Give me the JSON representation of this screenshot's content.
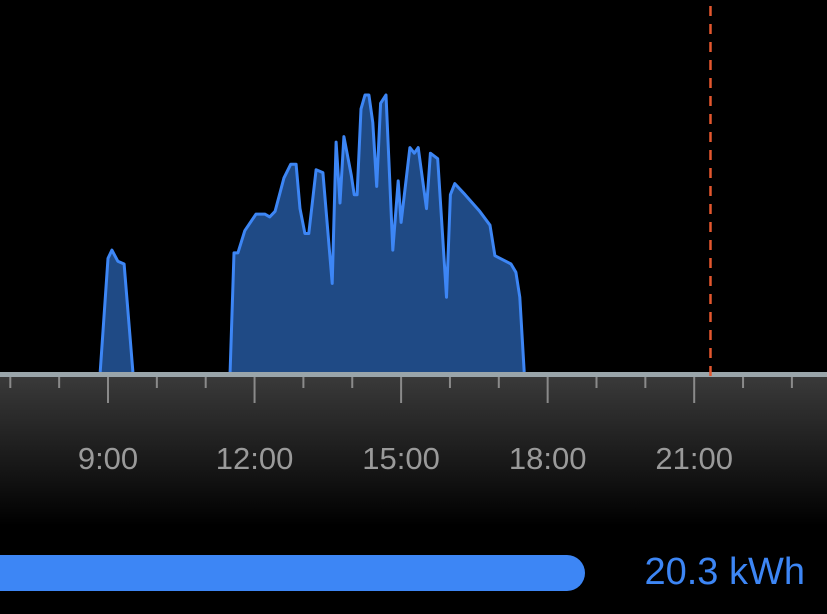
{
  "chart_data": {
    "type": "area",
    "xlabel": "",
    "ylabel": "",
    "xlim": [
      "6:47",
      "23:43"
    ],
    "ylim": [
      0,
      100
    ],
    "x_ticks": [
      "9:00",
      "12:00",
      "15:00",
      "18:00",
      "21:00"
    ],
    "minor_tick_interval_hours": 1,
    "grid": false,
    "current_time_marker": "21:20",
    "colors": {
      "fill": "#1f4a85",
      "line": "#3d86f5",
      "marker": "#e4572e",
      "axis": "#9aa5aa"
    },
    "points": [
      [
        8.84,
        0
      ],
      [
        9.0,
        41
      ],
      [
        9.08,
        44
      ],
      [
        9.2,
        40
      ],
      [
        9.33,
        39
      ],
      [
        9.51,
        0
      ],
      [
        11.5,
        0
      ],
      [
        11.58,
        43
      ],
      [
        11.66,
        43
      ],
      [
        11.8,
        51
      ],
      [
        12.03,
        57
      ],
      [
        12.21,
        57
      ],
      [
        12.31,
        56
      ],
      [
        12.42,
        58
      ],
      [
        12.6,
        70
      ],
      [
        12.74,
        75
      ],
      [
        12.85,
        75
      ],
      [
        12.93,
        59
      ],
      [
        13.03,
        50
      ],
      [
        13.11,
        50
      ],
      [
        13.26,
        73
      ],
      [
        13.4,
        72
      ],
      [
        13.59,
        32
      ],
      [
        13.67,
        83
      ],
      [
        13.75,
        61
      ],
      [
        13.83,
        85
      ],
      [
        13.98,
        71
      ],
      [
        14.04,
        64
      ],
      [
        14.1,
        64
      ],
      [
        14.18,
        95
      ],
      [
        14.26,
        100
      ],
      [
        14.34,
        100
      ],
      [
        14.42,
        90
      ],
      [
        14.5,
        67
      ],
      [
        14.58,
        97
      ],
      [
        14.69,
        100
      ],
      [
        14.83,
        44
      ],
      [
        14.94,
        69
      ],
      [
        15.0,
        54
      ],
      [
        15.18,
        81
      ],
      [
        15.27,
        79
      ],
      [
        15.35,
        81
      ],
      [
        15.52,
        59
      ],
      [
        15.6,
        79
      ],
      [
        15.75,
        77
      ],
      [
        15.93,
        27
      ],
      [
        16.01,
        64
      ],
      [
        16.1,
        68
      ],
      [
        16.31,
        64
      ],
      [
        16.61,
        58
      ],
      [
        16.82,
        53
      ],
      [
        16.92,
        42
      ],
      [
        17.25,
        39
      ],
      [
        17.35,
        36
      ],
      [
        17.43,
        27
      ],
      [
        17.52,
        0
      ]
    ]
  },
  "summary": {
    "total": "20.3 kWh"
  }
}
